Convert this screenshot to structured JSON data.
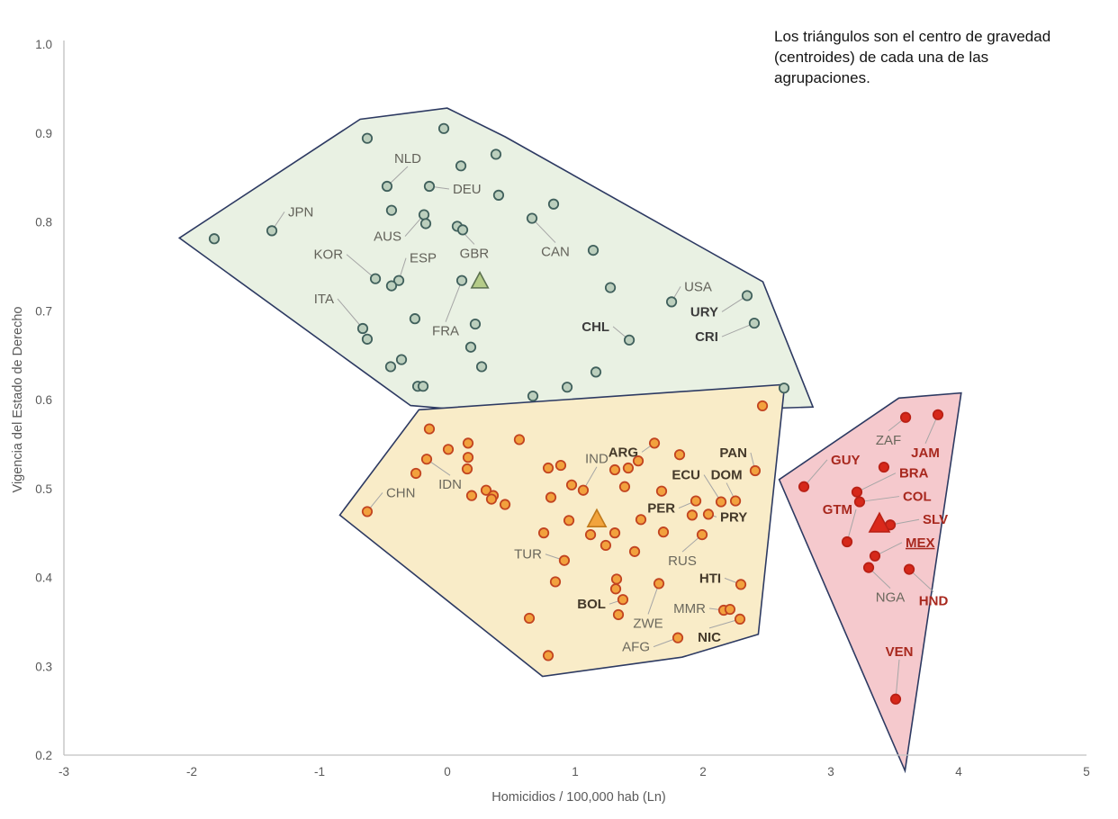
{
  "annotation": "Los triángulos son el centro de gravedad (centroides) de cada una de las agrupaciones.",
  "chart_data": {
    "type": "scatter",
    "xlabel": "Homicidios / 100,000 hab (Ln)",
    "ylabel": "Vigencia del Estado de Derecho",
    "xlim": [
      -3,
      5
    ],
    "ylim": [
      0.2,
      1.0
    ],
    "x_ticks": [
      -3,
      -2,
      -1,
      0,
      1,
      2,
      3,
      4,
      5
    ],
    "y_ticks": [
      0.2,
      0.3,
      0.4,
      0.5,
      0.6,
      0.7,
      0.8,
      0.9,
      1.0
    ],
    "grid": false,
    "legend": "none",
    "axis_color": "#c0c0c0",
    "tick_color": "#595959",
    "leader_color": "#a6a6a6",
    "clusters": [
      {
        "name": "rule-of-law-high",
        "hull_fill": "#e9f1e3",
        "hull_stroke": "#2d3a62",
        "dot_fill": "#bccfbd",
        "dot_stroke": "#40605c",
        "tri_fill": "#b5cc88",
        "tri_stroke": "#5c7150",
        "tri_size": 10,
        "label_color": "#63625a",
        "bold_color": "#3c3c3c",
        "centroid": {
          "x": 0.254,
          "y": 0.733
        },
        "points": [
          {
            "x": -1.373,
            "y": 0.79,
            "label": "JPN",
            "dx": 18,
            "dy": -16,
            "anchor": "start"
          },
          {
            "x": -0.472,
            "y": 0.84,
            "label": "NLD",
            "dx": 23,
            "dy": -26,
            "anchor": "middle"
          },
          {
            "x": -0.141,
            "y": 0.84,
            "label": "DEU",
            "dx": 26,
            "dy": 8,
            "anchor": "start"
          },
          {
            "x": -0.183,
            "y": 0.808,
            "label": "AUS",
            "dx": -25,
            "dy": 29,
            "anchor": "end"
          },
          {
            "x": -0.563,
            "y": 0.736,
            "label": "KOR",
            "dx": -36,
            "dy": -22,
            "anchor": "end"
          },
          {
            "x": -0.38,
            "y": 0.734,
            "label": "ESP",
            "dx": 12,
            "dy": -20,
            "anchor": "start"
          },
          {
            "x": 0.077,
            "y": 0.795,
            "label": "GBR",
            "dx": 19,
            "dy": 35,
            "anchor": "middle"
          },
          {
            "x": 0.113,
            "y": 0.734,
            "label": "FRA",
            "dx": -18,
            "dy": 61,
            "anchor": "middle"
          },
          {
            "x": -0.662,
            "y": 0.68,
            "label": "ITA",
            "dx": -32,
            "dy": -28,
            "anchor": "end"
          },
          {
            "x": 0.662,
            "y": 0.804,
            "label": "CAN",
            "dx": 26,
            "dy": 42,
            "anchor": "middle"
          },
          {
            "x": 1.754,
            "y": 0.71,
            "label": "USA",
            "dx": 14,
            "dy": -12,
            "anchor": "start"
          },
          {
            "x": 2.345,
            "y": 0.717,
            "label": "URY",
            "dx": -32,
            "dy": 23,
            "anchor": "end",
            "bold": true
          },
          {
            "x": 1.423,
            "y": 0.667,
            "label": "CHL",
            "dx": -22,
            "dy": -10,
            "anchor": "end",
            "bold": true
          },
          {
            "x": 2.401,
            "y": 0.686,
            "label": "CRI",
            "dx": -40,
            "dy": 20,
            "anchor": "end",
            "bold": true
          },
          {
            "x": -0.627,
            "y": 0.894
          },
          {
            "x": -0.028,
            "y": 0.905
          },
          {
            "x": 0.38,
            "y": 0.876
          },
          {
            "x": 0.106,
            "y": 0.863
          },
          {
            "x": 0.401,
            "y": 0.83
          },
          {
            "x": -1.824,
            "y": 0.781
          },
          {
            "x": -0.437,
            "y": 0.813
          },
          {
            "x": -0.169,
            "y": 0.798
          },
          {
            "x": 0.12,
            "y": 0.791
          },
          {
            "x": 0.831,
            "y": 0.82
          },
          {
            "x": -0.437,
            "y": 0.728
          },
          {
            "x": -0.627,
            "y": 0.668
          },
          {
            "x": -0.254,
            "y": 0.691
          },
          {
            "x": 0.218,
            "y": 0.685
          },
          {
            "x": 0.183,
            "y": 0.659
          },
          {
            "x": -0.359,
            "y": 0.645
          },
          {
            "x": -0.444,
            "y": 0.637
          },
          {
            "x": -0.232,
            "y": 0.615
          },
          {
            "x": -0.19,
            "y": 0.615
          },
          {
            "x": 0.268,
            "y": 0.637
          },
          {
            "x": 1.141,
            "y": 0.768
          },
          {
            "x": 1.275,
            "y": 0.726
          },
          {
            "x": 1.162,
            "y": 0.631
          },
          {
            "x": 0.937,
            "y": 0.614
          },
          {
            "x": 0.669,
            "y": 0.604
          },
          {
            "x": 2.634,
            "y": 0.613
          }
        ]
      },
      {
        "name": "rule-of-law-mid",
        "hull_fill": "#f9ecc8",
        "hull_stroke": "#2d3a62",
        "dot_fill": "#f2a13d",
        "dot_stroke": "#c24420",
        "tri_fill": "#f2a43c",
        "tri_stroke": "#c0791c",
        "tri_size": 11,
        "label_color": "#6b685d",
        "bold_color": "#44392a",
        "centroid": {
          "x": 1.169,
          "y": 0.465
        },
        "points": [
          {
            "x": -0.627,
            "y": 0.474,
            "label": "CHN",
            "dx": 21,
            "dy": -16,
            "anchor": "start"
          },
          {
            "x": -0.162,
            "y": 0.533,
            "label": "IDN",
            "dx": 26,
            "dy": 33,
            "anchor": "middle"
          },
          {
            "x": 1.063,
            "y": 0.498,
            "label": "IND",
            "dx": 15,
            "dy": -30,
            "anchor": "middle"
          },
          {
            "x": 1.62,
            "y": 0.551,
            "label": "ARG",
            "dx": -18,
            "dy": 15,
            "anchor": "end",
            "bold": true
          },
          {
            "x": 2.408,
            "y": 0.52,
            "label": "PAN",
            "dx": -9,
            "dy": -15,
            "anchor": "end",
            "bold": true
          },
          {
            "x": 2.141,
            "y": 0.485,
            "label": "ECU",
            "dx": -23,
            "dy": -25,
            "anchor": "end",
            "bold": true
          },
          {
            "x": 2.254,
            "y": 0.486,
            "label": "DOM",
            "dx": -10,
            "dy": -24,
            "anchor": "middle",
            "bold": true
          },
          {
            "x": 1.944,
            "y": 0.486,
            "label": "PER",
            "dx": -23,
            "dy": 13,
            "anchor": "end",
            "bold": true
          },
          {
            "x": 2.042,
            "y": 0.471,
            "label": "PRY",
            "dx": 13,
            "dy": 8,
            "anchor": "start",
            "bold": true
          },
          {
            "x": 0.915,
            "y": 0.419,
            "label": "TUR",
            "dx": -25,
            "dy": -2,
            "anchor": "end"
          },
          {
            "x": 1.993,
            "y": 0.448,
            "label": "RUS",
            "dx": -22,
            "dy": 34,
            "anchor": "middle"
          },
          {
            "x": 1.373,
            "y": 0.375,
            "label": "BOL",
            "dx": -19,
            "dy": 10,
            "anchor": "end",
            "bold": true
          },
          {
            "x": 1.655,
            "y": 0.393,
            "label": "ZWE",
            "dx": -12,
            "dy": 49,
            "anchor": "middle"
          },
          {
            "x": 2.162,
            "y": 0.363,
            "label": "MMR",
            "dx": -20,
            "dy": 3,
            "anchor": "end"
          },
          {
            "x": 2.296,
            "y": 0.392,
            "label": "HTI",
            "dx": -22,
            "dy": -2,
            "anchor": "end",
            "bold": true
          },
          {
            "x": 2.289,
            "y": 0.353,
            "label": "NIC",
            "dx": -34,
            "dy": 25,
            "anchor": "middle",
            "bold": true
          },
          {
            "x": 1.803,
            "y": 0.332,
            "label": "AFG",
            "dx": -31,
            "dy": 15,
            "anchor": "end"
          },
          {
            "x": -0.141,
            "y": 0.567
          },
          {
            "x": 0.007,
            "y": 0.544
          },
          {
            "x": 0.162,
            "y": 0.551
          },
          {
            "x": 0.162,
            "y": 0.535
          },
          {
            "x": -0.246,
            "y": 0.517
          },
          {
            "x": 0.155,
            "y": 0.522
          },
          {
            "x": 0.563,
            "y": 0.555
          },
          {
            "x": 0.789,
            "y": 0.523
          },
          {
            "x": 0.887,
            "y": 0.526
          },
          {
            "x": 0.972,
            "y": 0.504
          },
          {
            "x": 0.81,
            "y": 0.49
          },
          {
            "x": 0.19,
            "y": 0.492
          },
          {
            "x": 0.303,
            "y": 0.498
          },
          {
            "x": 0.359,
            "y": 0.492
          },
          {
            "x": 0.345,
            "y": 0.488
          },
          {
            "x": 0.451,
            "y": 0.482
          },
          {
            "x": 0.951,
            "y": 0.464
          },
          {
            "x": 1.12,
            "y": 0.448
          },
          {
            "x": 1.31,
            "y": 0.45
          },
          {
            "x": 0.754,
            "y": 0.45
          },
          {
            "x": 1.239,
            "y": 0.436
          },
          {
            "x": 1.465,
            "y": 0.429
          },
          {
            "x": 0.845,
            "y": 0.395
          },
          {
            "x": 1.324,
            "y": 0.398
          },
          {
            "x": 1.317,
            "y": 0.387
          },
          {
            "x": 1.338,
            "y": 0.358
          },
          {
            "x": 0.641,
            "y": 0.354
          },
          {
            "x": 0.789,
            "y": 0.312
          },
          {
            "x": 1.817,
            "y": 0.538
          },
          {
            "x": 1.493,
            "y": 0.531
          },
          {
            "x": 1.31,
            "y": 0.521
          },
          {
            "x": 1.415,
            "y": 0.523
          },
          {
            "x": 1.387,
            "y": 0.502
          },
          {
            "x": 1.676,
            "y": 0.497
          },
          {
            "x": 1.915,
            "y": 0.47
          },
          {
            "x": 1.514,
            "y": 0.465
          },
          {
            "x": 1.69,
            "y": 0.451
          },
          {
            "x": 2.211,
            "y": 0.364
          },
          {
            "x": 2.465,
            "y": 0.593
          }
        ]
      },
      {
        "name": "rule-of-law-low",
        "hull_fill": "#f5c9cd",
        "hull_stroke": "#2d3a62",
        "dot_fill": "#d6281a",
        "dot_stroke": "#b92015",
        "tri_fill": "#da291b",
        "tri_stroke": "#b92015",
        "tri_size": 12,
        "label_color": "#6b685d",
        "bold_color": "#a8281e",
        "centroid": {
          "x": 3.38,
          "y": 0.46
        },
        "points": [
          {
            "x": 3.585,
            "y": 0.58,
            "label": "ZAF",
            "dx": -19,
            "dy": 30,
            "anchor": "middle"
          },
          {
            "x": 3.838,
            "y": 0.583,
            "label": "JAM",
            "dx": -14,
            "dy": 47,
            "anchor": "middle",
            "bold": true
          },
          {
            "x": 2.789,
            "y": 0.502,
            "label": "GUY",
            "dx": 30,
            "dy": -25,
            "anchor": "start",
            "bold": true
          },
          {
            "x": 3.204,
            "y": 0.496,
            "label": "BRA",
            "dx": 47,
            "dy": -16,
            "anchor": "start",
            "bold": true
          },
          {
            "x": 3.225,
            "y": 0.485,
            "label": "COL",
            "dx": 48,
            "dy": -1,
            "anchor": "start",
            "bold": true
          },
          {
            "x": 3.465,
            "y": 0.459,
            "label": "SLV",
            "dx": 36,
            "dy": -1,
            "anchor": "start",
            "bold": true
          },
          {
            "x": 3.127,
            "y": 0.44,
            "label": "GTM",
            "dx": 6,
            "dy": -31,
            "anchor": "end",
            "bold": true
          },
          {
            "x": 3.345,
            "y": 0.424,
            "label": "MEX",
            "dx": 34,
            "dy": -10,
            "anchor": "start",
            "bold": true,
            "underline": true
          },
          {
            "x": 3.296,
            "y": 0.411,
            "label": "NGA",
            "dx": 24,
            "dy": 38,
            "anchor": "middle"
          },
          {
            "x": 3.613,
            "y": 0.409,
            "label": "HND",
            "dx": 27,
            "dy": 40,
            "anchor": "middle",
            "bold": true
          },
          {
            "x": 3.507,
            "y": 0.263,
            "label": "VEN",
            "dx": 4,
            "dy": -48,
            "anchor": "middle",
            "bold": true
          },
          {
            "x": 3.415,
            "y": 0.524
          }
        ]
      }
    ]
  }
}
